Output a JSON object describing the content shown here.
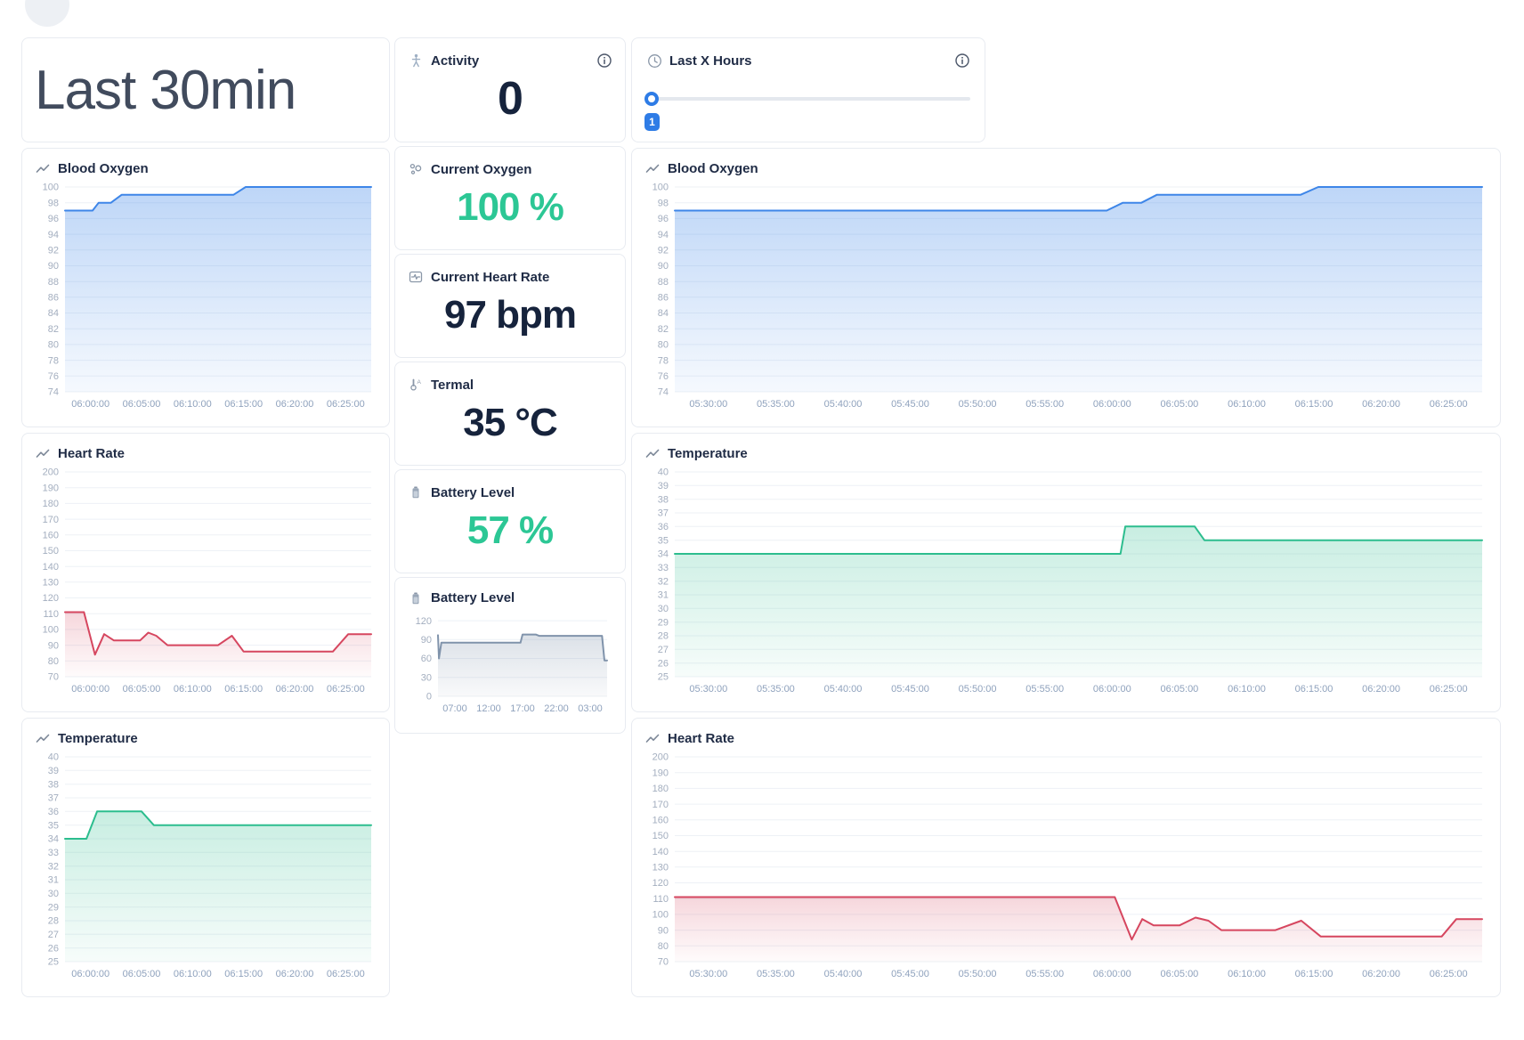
{
  "page": {
    "title": "Last 30min"
  },
  "colors": {
    "blue": "#3e86e8",
    "red": "#d6465f",
    "green-line": "#2cbd8e",
    "slate": "#8093ab",
    "green-text": "#2cc795",
    "navy": "#16233c",
    "accent-blue": "#2e7ce6"
  },
  "cards": {
    "activity": {
      "label": "Activity",
      "value": "0"
    },
    "last_x_hours": {
      "label": "Last X Hours",
      "badge": "1"
    },
    "current_oxygen": {
      "label": "Current Oxygen",
      "value": "100 %"
    },
    "current_heart_rate": {
      "label": "Current Heart Rate",
      "value": "97 bpm"
    },
    "termal": {
      "label": "Termal",
      "value": "35 °C"
    },
    "battery_level": {
      "label": "Battery Level",
      "value": "57 %"
    }
  },
  "chart_data": [
    {
      "id": "left-blood-oxygen",
      "type": "area",
      "title": "Blood Oxygen",
      "color": "#3e86e8",
      "fill_top": 0.34,
      "fill_bottom": 0.05,
      "yticks": [
        100,
        98,
        96,
        94,
        92,
        90,
        88,
        86,
        84,
        82,
        80,
        78,
        76,
        74
      ],
      "ymin": 74,
      "ymax": 100,
      "xlabels": [
        "06:00:00",
        "06:05:00",
        "06:10:00",
        "06:15:00",
        "06:20:00",
        "06:25:00"
      ],
      "points": [
        [
          0,
          97
        ],
        [
          0.09,
          97
        ],
        [
          0.11,
          98
        ],
        [
          0.15,
          98
        ],
        [
          0.185,
          99
        ],
        [
          0.55,
          99
        ],
        [
          0.59,
          100
        ],
        [
          1,
          100
        ]
      ]
    },
    {
      "id": "left-heart-rate",
      "type": "area",
      "title": "Heart Rate",
      "color": "#d6465f",
      "fill_top": 0.22,
      "fill_bottom": 0.02,
      "yticks": [
        200,
        190,
        180,
        170,
        160,
        150,
        140,
        130,
        120,
        110,
        100,
        90,
        80,
        70
      ],
      "ymin": 70,
      "ymax": 200,
      "xlabels": [
        "06:00:00",
        "06:05:00",
        "06:10:00",
        "06:15:00",
        "06:20:00",
        "06:25:00"
      ],
      "points": [
        [
          0,
          111
        ],
        [
          0.062,
          111
        ],
        [
          0.098,
          84
        ],
        [
          0.128,
          97
        ],
        [
          0.16,
          93
        ],
        [
          0.245,
          93
        ],
        [
          0.272,
          98
        ],
        [
          0.298,
          96
        ],
        [
          0.335,
          90
        ],
        [
          0.5,
          90
        ],
        [
          0.545,
          96
        ],
        [
          0.583,
          86
        ],
        [
          0.875,
          86
        ],
        [
          0.925,
          97
        ],
        [
          1,
          97
        ]
      ]
    },
    {
      "id": "left-temperature",
      "type": "area",
      "title": "Temperature",
      "color": "#2cbd8e",
      "fill_top": 0.26,
      "fill_bottom": 0.04,
      "yticks": [
        40,
        39,
        38,
        37,
        36,
        35,
        34,
        33,
        32,
        31,
        30,
        29,
        28,
        27,
        26,
        25
      ],
      "ymin": 25,
      "ymax": 40,
      "xlabels": [
        "06:00:00",
        "06:05:00",
        "06:10:00",
        "06:15:00",
        "06:20:00",
        "06:25:00"
      ],
      "points": [
        [
          0,
          34
        ],
        [
          0.07,
          34
        ],
        [
          0.105,
          36
        ],
        [
          0.25,
          36
        ],
        [
          0.29,
          35
        ],
        [
          1,
          35
        ]
      ]
    },
    {
      "id": "battery-chart",
      "type": "area",
      "title": "Battery Level",
      "color": "#8093ab",
      "fill_top": 0.28,
      "fill_bottom": 0.05,
      "yticks": [
        120,
        90,
        60,
        30,
        0
      ],
      "ymin": 0,
      "ymax": 130,
      "xlabels": [
        "07:00",
        "12:00",
        "17:00",
        "22:00",
        "03:00"
      ],
      "points": [
        [
          0,
          97
        ],
        [
          0.006,
          60
        ],
        [
          0.02,
          85
        ],
        [
          0.488,
          85
        ],
        [
          0.5,
          98
        ],
        [
          0.578,
          98
        ],
        [
          0.598,
          96
        ],
        [
          0.97,
          96
        ],
        [
          0.984,
          57
        ],
        [
          1,
          57
        ]
      ]
    },
    {
      "id": "right-blood-oxygen",
      "type": "area",
      "title": "Blood Oxygen",
      "color": "#3e86e8",
      "fill_top": 0.34,
      "fill_bottom": 0.05,
      "yticks": [
        100,
        98,
        96,
        94,
        92,
        90,
        88,
        86,
        84,
        82,
        80,
        78,
        76,
        74
      ],
      "ymin": 74,
      "ymax": 100,
      "xlabels": [
        "05:30:00",
        "05:35:00",
        "05:40:00",
        "05:45:00",
        "05:50:00",
        "05:55:00",
        "06:00:00",
        "06:05:00",
        "06:10:00",
        "06:15:00",
        "06:20:00",
        "06:25:00"
      ],
      "points": [
        [
          0,
          97
        ],
        [
          0.535,
          97
        ],
        [
          0.555,
          98
        ],
        [
          0.578,
          98
        ],
        [
          0.597,
          99
        ],
        [
          0.775,
          99
        ],
        [
          0.797,
          100
        ],
        [
          1,
          100
        ]
      ]
    },
    {
      "id": "right-temperature",
      "type": "area",
      "title": "Temperature",
      "color": "#2cbd8e",
      "fill_top": 0.26,
      "fill_bottom": 0.04,
      "yticks": [
        40,
        39,
        38,
        37,
        36,
        35,
        34,
        33,
        32,
        31,
        30,
        29,
        28,
        27,
        26,
        25
      ],
      "ymin": 25,
      "ymax": 40,
      "xlabels": [
        "05:30:00",
        "05:35:00",
        "05:40:00",
        "05:45:00",
        "05:50:00",
        "05:55:00",
        "06:00:00",
        "06:05:00",
        "06:10:00",
        "06:15:00",
        "06:20:00",
        "06:25:00"
      ],
      "points": [
        [
          0,
          34
        ],
        [
          0.552,
          34
        ],
        [
          0.558,
          36
        ],
        [
          0.644,
          36
        ],
        [
          0.656,
          35
        ],
        [
          1,
          35
        ]
      ]
    },
    {
      "id": "right-heart-rate",
      "type": "area",
      "title": "Heart Rate",
      "color": "#d6465f",
      "fill_top": 0.22,
      "fill_bottom": 0.02,
      "yticks": [
        200,
        190,
        180,
        170,
        160,
        150,
        140,
        130,
        120,
        110,
        100,
        90,
        80,
        70
      ],
      "ymin": 70,
      "ymax": 200,
      "xlabels": [
        "05:30:00",
        "05:35:00",
        "05:40:00",
        "05:45:00",
        "05:50:00",
        "05:55:00",
        "06:00:00",
        "06:05:00",
        "06:10:00",
        "06:15:00",
        "06:20:00",
        "06:25:00"
      ],
      "points": [
        [
          0,
          111
        ],
        [
          0.545,
          111
        ],
        [
          0.566,
          84
        ],
        [
          0.579,
          97
        ],
        [
          0.593,
          93
        ],
        [
          0.625,
          93
        ],
        [
          0.645,
          98
        ],
        [
          0.661,
          96
        ],
        [
          0.677,
          90
        ],
        [
          0.744,
          90
        ],
        [
          0.776,
          96
        ],
        [
          0.8,
          86
        ],
        [
          0.95,
          86
        ],
        [
          0.968,
          97
        ],
        [
          1,
          97
        ]
      ]
    }
  ]
}
